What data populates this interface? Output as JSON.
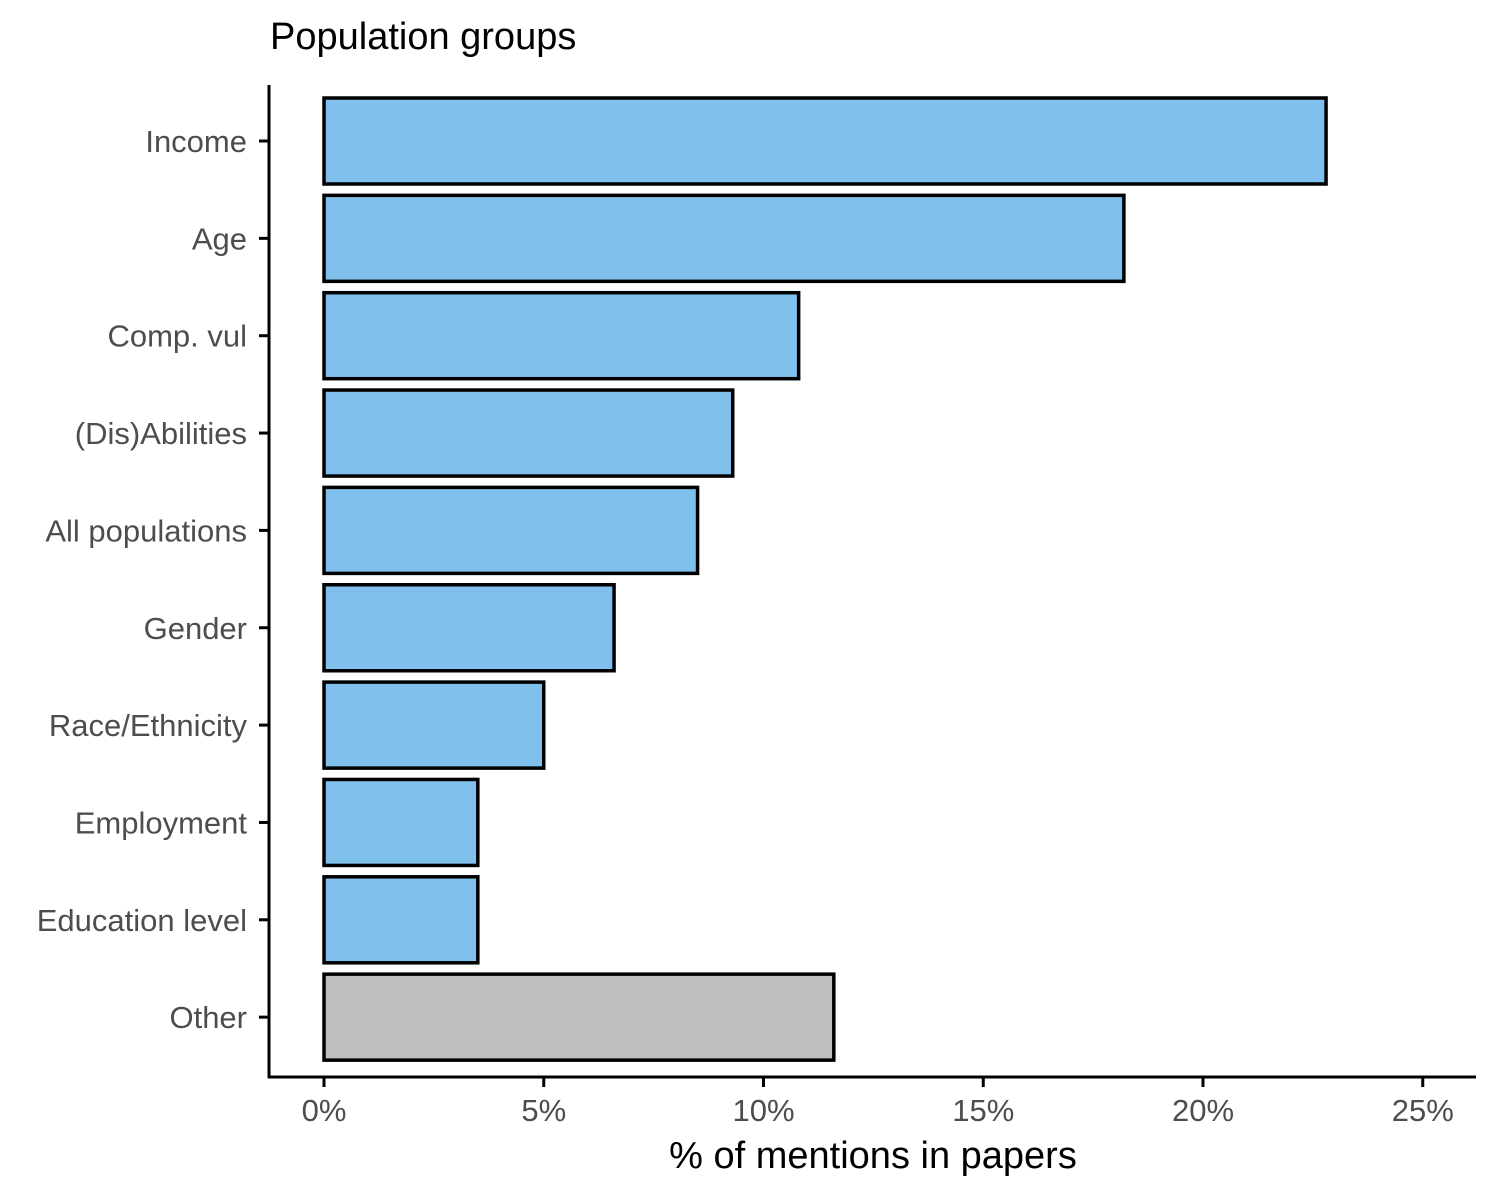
{
  "chart_data": {
    "type": "bar",
    "orientation": "horizontal",
    "title": "Population groups",
    "xlabel": "% of mentions in papers",
    "ylabel": "",
    "categories": [
      "Income",
      "Age",
      "Comp. vul",
      "(Dis)Abilities",
      "All populations",
      "Gender",
      "Race/Ethnicity",
      "Employment",
      "Education level",
      "Other"
    ],
    "values": [
      22.8,
      18.2,
      10.8,
      9.3,
      8.5,
      6.6,
      5.0,
      3.5,
      3.5,
      11.6
    ],
    "xlim": [
      0,
      25
    ],
    "xticks": [
      0,
      5,
      10,
      15,
      20,
      25
    ],
    "xtick_labels": [
      "0%",
      "5%",
      "10%",
      "15%",
      "20%",
      "25%"
    ],
    "colors": {
      "bar_fill": "#7fc0ed",
      "other_fill": "#bebebe",
      "bar_stroke": "#000000"
    },
    "grid": false,
    "legend": "none"
  }
}
